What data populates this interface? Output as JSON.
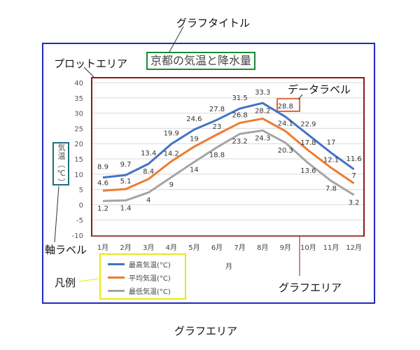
{
  "labels": {
    "graph_title_label": "グラフタイトル",
    "plot_area_label": "プロットエリア",
    "data_label_label": "データラベル",
    "axis_label_label": "軸ラベル",
    "legend_label": "凡例",
    "graph_area_label_inner": "グラフエリア",
    "graph_area_label_outer": "グラフエリア"
  },
  "chart_data": {
    "type": "line",
    "title": "京都の気温と降水量",
    "xlabel": "月",
    "ylabel": "気温（℃）",
    "ylim": [
      -10,
      40
    ],
    "yticks": [
      -10,
      -5,
      0,
      5,
      10,
      15,
      20,
      25,
      30,
      35,
      40
    ],
    "grid": true,
    "legend_position": "bottom-left",
    "categories": [
      "1月",
      "2月",
      "3月",
      "4月",
      "5月",
      "6月",
      "7月",
      "8月",
      "9月",
      "10月",
      "11月",
      "12月"
    ],
    "series": [
      {
        "name": "最高気温(°C)",
        "color": "#4472c4",
        "values": [
          8.9,
          9.7,
          13.4,
          19.9,
          24.6,
          27.8,
          31.5,
          33.3,
          28.8,
          22.9,
          17,
          11.6
        ]
      },
      {
        "name": "平均気温(°C)",
        "color": "#ed7d31",
        "values": [
          4.6,
          5.1,
          8.4,
          14.2,
          19,
          23,
          26.8,
          28.2,
          24.1,
          17.8,
          12.1,
          7
        ]
      },
      {
        "name": "最低気温(°C)",
        "color": "#a5a5a5",
        "values": [
          1.2,
          1.4,
          4,
          9,
          14,
          18.8,
          23.2,
          24.3,
          20.3,
          13.6,
          7.8,
          3.2
        ]
      }
    ]
  }
}
